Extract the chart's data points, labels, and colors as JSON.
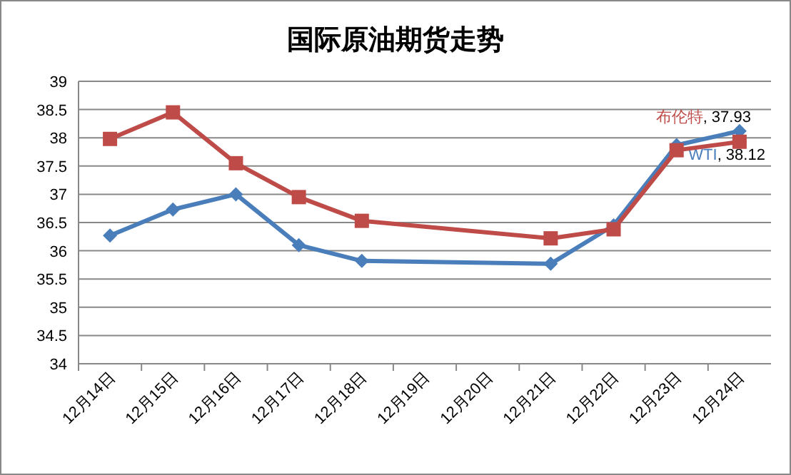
{
  "chart_data": {
    "type": "line",
    "title": "国际原油期货走势",
    "categories": [
      "12月14日",
      "12月15日",
      "12月16日",
      "12月17日",
      "12月18日",
      "12月19日",
      "12月20日",
      "12月21日",
      "12月22日",
      "12月23日",
      "12月24日"
    ],
    "series": [
      {
        "name": "WTI",
        "color": "#4a7ebb",
        "marker": "diamond",
        "values": [
          36.27,
          36.73,
          37.0,
          36.1,
          35.82,
          null,
          null,
          35.77,
          36.45,
          37.87,
          38.12
        ],
        "value_labels": [
          null,
          null,
          null,
          null,
          null,
          null,
          null,
          null,
          null,
          null,
          ", 38.12"
        ]
      },
      {
        "name": "布伦特",
        "color": "#be4b48",
        "marker": "square",
        "values": [
          37.98,
          38.45,
          37.55,
          36.95,
          36.53,
          null,
          null,
          36.22,
          36.38,
          37.78,
          37.93
        ],
        "value_labels": [
          null,
          null,
          null,
          null,
          null,
          null,
          null,
          null,
          null,
          null,
          ", 37.93"
        ]
      }
    ],
    "ylim": [
      34,
      39
    ],
    "yticks": [
      34,
      34.5,
      35,
      35.5,
      36,
      36.5,
      37,
      37.5,
      38,
      38.5,
      39
    ],
    "grid": "y",
    "legend": false
  }
}
